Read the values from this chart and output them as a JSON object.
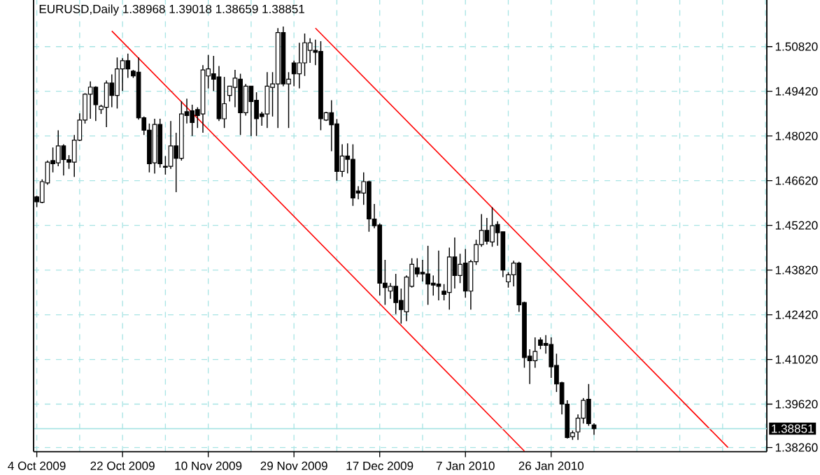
{
  "chart_data": {
    "type": "candlestick",
    "title": "EURUSD,Daily 1.38968 1.39018 1.38659 1.38851",
    "color": "#000000",
    "categories": [
      "4 Oct 2009",
      null,
      null,
      null,
      null,
      null,
      null,
      null,
      null,
      null,
      null,
      null,
      null,
      null,
      null,
      null,
      "22 Oct 2009",
      null,
      null,
      null,
      null,
      null,
      null,
      null,
      null,
      null,
      null,
      null,
      null,
      null,
      null,
      null,
      "10 Nov 2009",
      null,
      null,
      null,
      null,
      null,
      null,
      null,
      null,
      null,
      null,
      null,
      null,
      null,
      null,
      null,
      "29 Nov 2009",
      null,
      null,
      null,
      null,
      null,
      null,
      null,
      null,
      null,
      null,
      null,
      null,
      null,
      null,
      null,
      "17 Dec 2009",
      null,
      null,
      null,
      null,
      null,
      null,
      null,
      null,
      null,
      null,
      null,
      null,
      null,
      null,
      null,
      "7 Jan 2010",
      null,
      null,
      null,
      null,
      null,
      null,
      null,
      null,
      null,
      null,
      null,
      null,
      null,
      null,
      null,
      "26 Jan 2010",
      null,
      null,
      null,
      null,
      null,
      null,
      null,
      null,
      null,
      null,
      null,
      null,
      null,
      null,
      null,
      null,
      null,
      null,
      null,
      null,
      null,
      null,
      null,
      null,
      null,
      null,
      null,
      null,
      null,
      null,
      null,
      null,
      null,
      null,
      null,
      null,
      null,
      null,
      null,
      null
    ],
    "ohlc": [
      [
        1.4611,
        1.4615,
        1.4579,
        1.4596
      ],
      [
        1.4594,
        1.4666,
        1.4591,
        1.4659
      ],
      [
        1.4655,
        1.4725,
        1.4649,
        1.472
      ],
      [
        1.4725,
        1.4766,
        1.4688,
        1.4715
      ],
      [
        1.4718,
        1.482,
        1.4707,
        1.4771
      ],
      [
        1.4771,
        1.4776,
        1.4678,
        1.4728
      ],
      [
        1.4728,
        1.4742,
        1.4699,
        1.472
      ],
      [
        1.472,
        1.4805,
        1.4674,
        1.4789
      ],
      [
        1.4789,
        1.4873,
        1.4786,
        1.4852
      ],
      [
        1.4852,
        1.4936,
        1.4841,
        1.4933
      ],
      [
        1.4933,
        1.4973,
        1.4856,
        1.4955
      ],
      [
        1.4955,
        1.4958,
        1.4849,
        1.49
      ],
      [
        1.4885,
        1.49,
        1.4871,
        1.4895
      ],
      [
        1.4892,
        1.4976,
        1.483,
        1.4968
      ],
      [
        1.4968,
        1.4995,
        1.4892,
        1.4929
      ],
      [
        1.4929,
        1.5048,
        1.4888,
        1.5012
      ],
      [
        1.5012,
        1.5046,
        1.4943,
        1.5038
      ],
      [
        1.5038,
        1.506,
        1.4984,
        1.5012
      ],
      [
        1.5005,
        1.5009,
        1.4984,
        1.499
      ],
      [
        1.5002,
        1.5048,
        1.4853,
        1.4859
      ],
      [
        1.4859,
        1.4863,
        1.4805,
        1.482
      ],
      [
        1.482,
        1.4841,
        1.4688,
        1.4715
      ],
      [
        1.4718,
        1.4856,
        1.4684,
        1.4838
      ],
      [
        1.4838,
        1.4856,
        1.4703,
        1.4715
      ],
      [
        1.4707,
        1.4739,
        1.4681,
        1.4704
      ],
      [
        1.4707,
        1.4849,
        1.4699,
        1.4771
      ],
      [
        1.4771,
        1.4812,
        1.4626,
        1.4732
      ],
      [
        1.4732,
        1.4911,
        1.4725,
        1.4871
      ],
      [
        1.4878,
        1.4919,
        1.4841,
        1.4866
      ],
      [
        1.4881,
        1.49,
        1.4802,
        1.4844
      ],
      [
        1.4885,
        1.4892,
        1.4827,
        1.4866
      ],
      [
        1.4871,
        1.5024,
        1.4812,
        1.5009
      ],
      [
        1.499,
        1.5056,
        1.4951,
        1.5012
      ],
      [
        1.4997,
        1.5053,
        1.4943,
        1.498
      ],
      [
        1.4987,
        1.5021,
        1.4849,
        1.4856
      ],
      [
        1.4856,
        1.4987,
        1.4827,
        1.4903
      ],
      [
        1.4929,
        1.4958,
        1.491,
        1.4958
      ],
      [
        1.4954,
        1.5009,
        1.4892,
        1.4983
      ],
      [
        1.498,
        1.4997,
        1.4805,
        1.4875
      ],
      [
        1.4875,
        1.4965,
        1.4866,
        1.4958
      ],
      [
        1.4958,
        1.4958,
        1.4802,
        1.491
      ],
      [
        1.4914,
        1.4939,
        1.4802,
        1.4856
      ],
      [
        1.4871,
        1.4878,
        1.4834,
        1.4863
      ],
      [
        1.4871,
        1.5002,
        1.4827,
        1.4958
      ],
      [
        1.4954,
        1.5002,
        1.4863,
        1.4965
      ],
      [
        1.4965,
        1.514,
        1.4827,
        1.5126
      ],
      [
        1.5126,
        1.5145,
        1.4958,
        1.4965
      ],
      [
        1.4965,
        1.5002,
        1.4827,
        1.498
      ],
      [
        1.5031,
        1.5038,
        1.4958,
        1.4997
      ],
      [
        1.4997,
        1.5094,
        1.4951,
        1.5031
      ],
      [
        1.5031,
        1.5123,
        1.499,
        1.5094
      ],
      [
        1.507,
        1.5108,
        1.5031,
        1.5094
      ],
      [
        1.507,
        1.5104,
        1.5024,
        1.5064
      ],
      [
        1.5067,
        1.5099,
        1.482,
        1.4856
      ],
      [
        1.4852,
        1.4878,
        1.4849,
        1.4875
      ],
      [
        1.4875,
        1.4914,
        1.4754,
        1.4837
      ],
      [
        1.484,
        1.4855,
        1.4662,
        1.4691
      ],
      [
        1.4691,
        1.4776,
        1.4674,
        1.4739
      ],
      [
        1.4739,
        1.4779,
        1.4685,
        1.4729
      ],
      [
        1.4729,
        1.4776,
        1.4583,
        1.4608
      ],
      [
        1.463,
        1.4645,
        1.4604,
        1.4623
      ],
      [
        1.4623,
        1.4688,
        1.4586,
        1.4659
      ],
      [
        1.4659,
        1.4662,
        1.4502,
        1.4542
      ],
      [
        1.4542,
        1.4589,
        1.4513,
        1.4521
      ],
      [
        1.4523,
        1.4528,
        1.4302,
        1.4341
      ],
      [
        1.4341,
        1.4414,
        1.4273,
        1.4327
      ],
      [
        1.4316,
        1.4341,
        1.4292,
        1.4331
      ],
      [
        1.4331,
        1.437,
        1.4244,
        1.428
      ],
      [
        1.4287,
        1.4324,
        1.4214,
        1.4258
      ],
      [
        1.4251,
        1.4365,
        1.4222,
        1.436
      ],
      [
        1.4331,
        1.4419,
        1.4327,
        1.44
      ],
      [
        1.4389,
        1.4419,
        1.436,
        1.437
      ],
      [
        1.4375,
        1.4414,
        1.4346,
        1.437
      ],
      [
        1.437,
        1.4458,
        1.4273,
        1.4338
      ],
      [
        1.4341,
        1.4365,
        1.4302,
        1.4335
      ],
      [
        1.4338,
        1.4443,
        1.4287,
        1.4331
      ],
      [
        1.4316,
        1.4338,
        1.4287,
        1.4306
      ],
      [
        1.4312,
        1.4452,
        1.4258,
        1.4423
      ],
      [
        1.4423,
        1.4484,
        1.4324,
        1.4365
      ],
      [
        1.4365,
        1.4433,
        1.4341,
        1.44
      ],
      [
        1.4404,
        1.4448,
        1.4295,
        1.4316
      ],
      [
        1.4316,
        1.4414,
        1.4258,
        1.4408
      ],
      [
        1.4408,
        1.4477,
        1.4398,
        1.4462
      ],
      [
        1.4462,
        1.4557,
        1.4455,
        1.4506
      ],
      [
        1.4506,
        1.4545,
        1.4462,
        1.4472
      ],
      [
        1.447,
        1.4579,
        1.4455,
        1.4521
      ],
      [
        1.4525,
        1.4535,
        1.4458,
        1.4499
      ],
      [
        1.4502,
        1.4502,
        1.436,
        1.4382
      ],
      [
        1.4345,
        1.4375,
        1.4327,
        1.4367
      ],
      [
        1.4367,
        1.4411,
        1.4331,
        1.4404
      ],
      [
        1.4404,
        1.4408,
        1.4251,
        1.4273
      ],
      [
        1.428,
        1.4283,
        1.4076,
        1.4108
      ],
      [
        1.4112,
        1.4134,
        1.4025,
        1.4098
      ],
      [
        1.4098,
        1.4171,
        1.4076,
        1.4127
      ],
      [
        1.4163,
        1.4171,
        1.4134,
        1.4146
      ],
      [
        1.4152,
        1.4178,
        1.412,
        1.4146
      ],
      [
        1.4149,
        1.4171,
        1.4044,
        1.4079
      ],
      [
        1.4083,
        1.412,
        1.4,
        1.4025
      ],
      [
        1.4029,
        1.4032,
        1.393,
        1.3962
      ],
      [
        1.3962,
        1.3974,
        1.3854,
        1.3857
      ],
      [
        1.386,
        1.3879,
        1.385,
        1.3872
      ],
      [
        1.3875,
        1.393,
        1.385,
        1.3918
      ],
      [
        1.3918,
        1.3981,
        1.3901,
        1.3974
      ],
      [
        1.3977,
        1.4025,
        1.3894,
        1.3901
      ],
      [
        1.38968,
        1.39018,
        1.38659,
        1.38851
      ],
      null,
      null,
      null,
      null,
      null,
      null,
      null,
      null,
      null,
      null,
      null,
      null,
      null,
      null,
      null,
      null,
      null,
      null,
      null,
      null,
      null,
      null,
      null,
      null,
      null,
      null,
      null,
      null,
      null,
      null,
      null,
      null
    ],
    "series": [
      {
        "type": "line",
        "color": "#ff0000",
        "values": [
          null,
          null,
          null,
          null,
          null,
          null,
          null,
          null,
          null,
          null,
          null,
          null,
          null,
          null,
          1.5131,
          null,
          null,
          null,
          null,
          null,
          null,
          null,
          null,
          null,
          null,
          null,
          null,
          null,
          null,
          null,
          null,
          null,
          null,
          null,
          null,
          null,
          null,
          null,
          null,
          null,
          null,
          null,
          null,
          null,
          null,
          null,
          null,
          null,
          null,
          null,
          null,
          null,
          null,
          null,
          null,
          null,
          null,
          null,
          null,
          null,
          null,
          null,
          null,
          null,
          null,
          null,
          null,
          null,
          null,
          null,
          null,
          null,
          null,
          null,
          null,
          null,
          null,
          null,
          null,
          null,
          null,
          null,
          null,
          null,
          null,
          null,
          null,
          null,
          null,
          null,
          null,
          1.3815,
          null,
          null,
          null,
          null,
          null,
          null,
          null,
          null,
          null,
          null,
          null,
          null,
          null,
          null,
          null,
          null,
          null,
          null,
          null,
          null,
          null,
          null,
          null,
          null,
          null,
          null,
          null,
          null,
          null,
          null,
          null,
          null,
          null,
          null,
          null,
          null,
          null,
          null,
          null,
          null,
          null,
          null,
          null,
          null,
          null
        ]
      },
      {
        "type": "line",
        "color": "#ff0000",
        "values": [
          null,
          null,
          null,
          null,
          null,
          null,
          null,
          null,
          null,
          null,
          null,
          null,
          null,
          null,
          null,
          null,
          null,
          null,
          null,
          null,
          null,
          null,
          null,
          null,
          null,
          null,
          null,
          null,
          null,
          null,
          null,
          null,
          null,
          null,
          null,
          null,
          null,
          null,
          null,
          null,
          null,
          null,
          null,
          null,
          null,
          null,
          null,
          null,
          null,
          null,
          null,
          null,
          1.514,
          null,
          null,
          null,
          null,
          null,
          null,
          null,
          null,
          null,
          null,
          null,
          null,
          null,
          null,
          null,
          null,
          null,
          null,
          null,
          null,
          null,
          null,
          null,
          null,
          null,
          null,
          null,
          null,
          null,
          null,
          null,
          null,
          null,
          null,
          null,
          null,
          null,
          null,
          null,
          null,
          null,
          null,
          null,
          null,
          null,
          null,
          null,
          null,
          null,
          null,
          null,
          null,
          null,
          null,
          null,
          null,
          null,
          null,
          null,
          null,
          null,
          null,
          null,
          null,
          null,
          null,
          null,
          null,
          null,
          null,
          null,
          null,
          null,
          null,
          null,
          null,
          1.3826,
          null,
          null,
          null,
          null,
          null,
          null,
          null
        ]
      }
    ],
    "ylim": [
      1.3813,
      1.5228
    ],
    "yticks": [
      {
        "value": 1.3826,
        "label": "1.38260"
      },
      {
        "value": 1.3962,
        "label": "1.39620"
      },
      {
        "value": 1.4102,
        "label": "1.41020"
      },
      {
        "value": 1.4242,
        "label": "1.42420"
      },
      {
        "value": 1.4382,
        "label": "1.43820"
      },
      {
        "value": 1.4522,
        "label": "1.45220"
      },
      {
        "value": 1.4662,
        "label": "1.46620"
      },
      {
        "value": 1.4802,
        "label": "1.48020"
      },
      {
        "value": 1.4942,
        "label": "1.49420"
      },
      {
        "value": 1.5082,
        "label": "1.50820"
      }
    ],
    "ref_lines": [
      {
        "axis": "y",
        "value": 1.38851,
        "label": "1.38851",
        "color": "#a8e4e4"
      }
    ],
    "grid": true
  }
}
